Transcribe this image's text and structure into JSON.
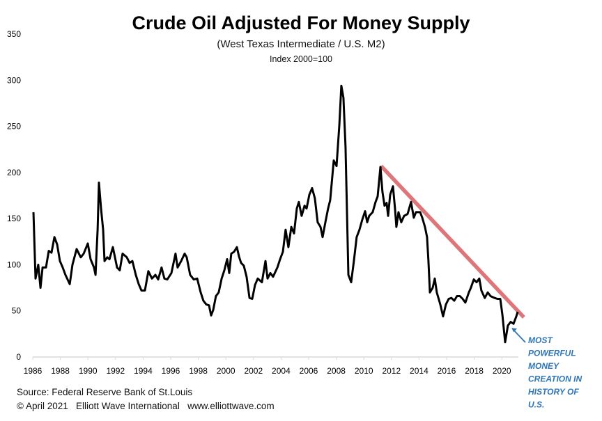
{
  "chart_data": {
    "type": "line",
    "title": "Crude Oil Adjusted For Money Supply",
    "subtitle": "(West Texas Intermediate / U.S. M2)",
    "subtitle2": "Index 2000=100",
    "xlabel": "",
    "ylabel": "",
    "xlim": [
      1986,
      2021.2
    ],
    "ylim": [
      0,
      350
    ],
    "grid": false,
    "x_ticks": [
      "1986",
      "1988",
      "1990",
      "1992",
      "1994",
      "1996",
      "1998",
      "2000",
      "2002",
      "2004",
      "2006",
      "2008",
      "2010",
      "2012",
      "2014",
      "2016",
      "2018",
      "2020"
    ],
    "y_ticks": [
      "0",
      "50",
      "100",
      "150",
      "200",
      "250",
      "300",
      "350"
    ],
    "line_color": "#000000",
    "series": [
      {
        "points": [
          [
            1986.05,
            157
          ],
          [
            1986.2,
            85
          ],
          [
            1986.4,
            100
          ],
          [
            1986.56,
            75
          ],
          [
            1986.71,
            97
          ],
          [
            1986.96,
            97
          ],
          [
            1987.16,
            115
          ],
          [
            1987.36,
            113
          ],
          [
            1987.57,
            130
          ],
          [
            1987.77,
            122
          ],
          [
            1987.97,
            104
          ],
          [
            1988.17,
            97
          ],
          [
            1988.37,
            89
          ],
          [
            1988.68,
            79
          ],
          [
            1988.88,
            100
          ],
          [
            1989.18,
            117
          ],
          [
            1989.48,
            108
          ],
          [
            1989.69,
            112
          ],
          [
            1989.99,
            123
          ],
          [
            1990.19,
            106
          ],
          [
            1990.44,
            97
          ],
          [
            1990.55,
            89
          ],
          [
            1990.7,
            138
          ],
          [
            1990.8,
            189
          ],
          [
            1990.95,
            161
          ],
          [
            1991.1,
            138
          ],
          [
            1991.2,
            104
          ],
          [
            1991.4,
            108
          ],
          [
            1991.56,
            106
          ],
          [
            1991.81,
            119
          ],
          [
            1992.11,
            97
          ],
          [
            1992.31,
            94
          ],
          [
            1992.51,
            112
          ],
          [
            1992.82,
            108
          ],
          [
            1993.02,
            102
          ],
          [
            1993.22,
            104
          ],
          [
            1993.47,
            89
          ],
          [
            1993.68,
            79
          ],
          [
            1993.88,
            72
          ],
          [
            1994.13,
            72
          ],
          [
            1994.38,
            93
          ],
          [
            1994.64,
            85
          ],
          [
            1994.89,
            89
          ],
          [
            1995.09,
            84
          ],
          [
            1995.34,
            97
          ],
          [
            1995.54,
            85
          ],
          [
            1995.75,
            84
          ],
          [
            1996.05,
            91
          ],
          [
            1996.35,
            112
          ],
          [
            1996.5,
            97
          ],
          [
            1996.76,
            104
          ],
          [
            1997.01,
            112
          ],
          [
            1997.16,
            108
          ],
          [
            1997.41,
            89
          ],
          [
            1997.67,
            84
          ],
          [
            1997.92,
            85
          ],
          [
            1998.17,
            70
          ],
          [
            1998.37,
            61
          ],
          [
            1998.57,
            57
          ],
          [
            1998.78,
            56
          ],
          [
            1998.93,
            45
          ],
          [
            1999.08,
            51
          ],
          [
            1999.28,
            66
          ],
          [
            1999.48,
            70
          ],
          [
            1999.69,
            85
          ],
          [
            1999.89,
            94
          ],
          [
            2000.09,
            106
          ],
          [
            2000.24,
            91
          ],
          [
            2000.39,
            112
          ],
          [
            2000.59,
            114
          ],
          [
            2000.8,
            119
          ],
          [
            2000.95,
            109
          ],
          [
            2001.1,
            102
          ],
          [
            2001.3,
            99
          ],
          [
            2001.5,
            87
          ],
          [
            2001.71,
            64
          ],
          [
            2001.91,
            63
          ],
          [
            2002.11,
            78
          ],
          [
            2002.31,
            85
          ],
          [
            2002.61,
            81
          ],
          [
            2002.87,
            104
          ],
          [
            2003.02,
            85
          ],
          [
            2003.22,
            91
          ],
          [
            2003.42,
            87
          ],
          [
            2003.73,
            97
          ],
          [
            2003.93,
            106
          ],
          [
            2004.13,
            114
          ],
          [
            2004.33,
            138
          ],
          [
            2004.53,
            119
          ],
          [
            2004.74,
            141
          ],
          [
            2004.94,
            134
          ],
          [
            2005.14,
            161
          ],
          [
            2005.29,
            168
          ],
          [
            2005.49,
            153
          ],
          [
            2005.7,
            164
          ],
          [
            2005.85,
            161
          ],
          [
            2006.05,
            176
          ],
          [
            2006.25,
            183
          ],
          [
            2006.45,
            172
          ],
          [
            2006.65,
            146
          ],
          [
            2006.86,
            141
          ],
          [
            2007.01,
            130
          ],
          [
            2007.21,
            146
          ],
          [
            2007.41,
            161
          ],
          [
            2007.56,
            170
          ],
          [
            2007.82,
            213
          ],
          [
            2008.02,
            207
          ],
          [
            2008.22,
            251
          ],
          [
            2008.37,
            294
          ],
          [
            2008.52,
            281
          ],
          [
            2008.67,
            228
          ],
          [
            2008.88,
            89
          ],
          [
            2009.08,
            81
          ],
          [
            2009.28,
            104
          ],
          [
            2009.48,
            130
          ],
          [
            2009.68,
            138
          ],
          [
            2009.89,
            149
          ],
          [
            2010.09,
            158
          ],
          [
            2010.24,
            146
          ],
          [
            2010.39,
            153
          ],
          [
            2010.64,
            157
          ],
          [
            2010.85,
            168
          ],
          [
            2011.0,
            174
          ],
          [
            2011.2,
            206
          ],
          [
            2011.35,
            179
          ],
          [
            2011.5,
            164
          ],
          [
            2011.65,
            167
          ],
          [
            2011.76,
            153
          ],
          [
            2011.91,
            176
          ],
          [
            2012.11,
            185
          ],
          [
            2012.26,
            161
          ],
          [
            2012.36,
            141
          ],
          [
            2012.51,
            157
          ],
          [
            2012.71,
            146
          ],
          [
            2012.92,
            153
          ],
          [
            2013.17,
            155
          ],
          [
            2013.42,
            168
          ],
          [
            2013.62,
            151
          ],
          [
            2013.78,
            157
          ],
          [
            2014.08,
            157
          ],
          [
            2014.23,
            151
          ],
          [
            2014.43,
            141
          ],
          [
            2014.58,
            130
          ],
          [
            2014.68,
            104
          ],
          [
            2014.79,
            70
          ],
          [
            2014.99,
            75
          ],
          [
            2015.14,
            85
          ],
          [
            2015.29,
            70
          ],
          [
            2015.54,
            57
          ],
          [
            2015.74,
            44
          ],
          [
            2015.95,
            57
          ],
          [
            2016.15,
            63
          ],
          [
            2016.35,
            64
          ],
          [
            2016.55,
            61
          ],
          [
            2016.75,
            66
          ],
          [
            2016.96,
            66
          ],
          [
            2017.16,
            63
          ],
          [
            2017.36,
            59
          ],
          [
            2017.61,
            70
          ],
          [
            2017.76,
            75
          ],
          [
            2017.97,
            84
          ],
          [
            2018.17,
            81
          ],
          [
            2018.37,
            85
          ],
          [
            2018.52,
            72
          ],
          [
            2018.77,
            64
          ],
          [
            2018.98,
            70
          ],
          [
            2019.18,
            66
          ],
          [
            2019.48,
            64
          ],
          [
            2019.68,
            63
          ],
          [
            2019.89,
            63
          ],
          [
            2020.04,
            46
          ],
          [
            2020.24,
            16
          ],
          [
            2020.44,
            34
          ],
          [
            2020.64,
            38
          ],
          [
            2020.85,
            36
          ],
          [
            2021.05,
            44
          ],
          [
            2021.15,
            49
          ]
        ]
      }
    ],
    "trendline": {
      "from": [
        2011.25,
        207
      ],
      "to": [
        2021.6,
        43
      ],
      "color": "#d9666a"
    },
    "annotation": {
      "lines": [
        "MOST",
        "POWERFUL",
        "MONEY",
        "CREATION IN",
        "HISTORY OF",
        "U.S."
      ],
      "color": "#2e75b6",
      "points_to": [
        2020.5,
        33
      ]
    }
  },
  "footer": {
    "source": "Source: Federal Reserve Bank of St.Louis",
    "copyright": "© April 2021   Elliott Wave International   www.elliottwave.com"
  }
}
